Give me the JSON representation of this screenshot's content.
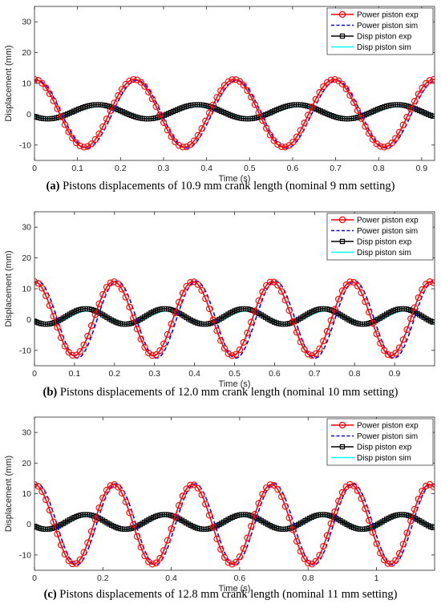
{
  "colors": {
    "power_exp": "#ff0000",
    "power_sim": "#0000ff",
    "disp_exp": "#000000",
    "disp_sim": "#00ffff"
  },
  "chart_data": [
    {
      "type": "line",
      "caption_label": "(a)",
      "caption_text": " Pistons displacements of 10.9 mm crank length (nominal 9 mm setting)",
      "xlabel": "Time (s)",
      "ylabel": "Displacement (mm)",
      "xlim": [
        0,
        0.93
      ],
      "ylim": [
        -15,
        35
      ],
      "xticks": [
        0,
        0.1,
        0.2,
        0.3,
        0.4,
        0.5,
        0.6,
        0.7,
        0.8,
        0.9
      ],
      "xtick_labels": [
        "0",
        "0.1",
        "0.2",
        "0.3",
        "0.4",
        "0.5",
        "0.6",
        "0.7",
        "0.8",
        "0.9"
      ],
      "yticks": [
        -10,
        0,
        10,
        20,
        30
      ],
      "ytick_labels": [
        "-10",
        "0",
        "10",
        "20",
        "30"
      ],
      "legend_position": "top-right",
      "period_s": 0.232,
      "series": [
        {
          "name": "Power piston exp",
          "style": "red-circles",
          "amplitude": 11,
          "phase_s": 0.0,
          "offset": 0.3
        },
        {
          "name": "Power piston sim",
          "style": "blue-dashed",
          "amplitude": 11,
          "phase_s": 0.006,
          "offset": 0
        },
        {
          "name": "Disp piston exp",
          "style": "black-squares",
          "amplitude": 2.3,
          "phase_s": 0.147,
          "offset": 0.8
        },
        {
          "name": "Disp piston sim",
          "style": "cyan-solid",
          "amplitude": 2,
          "phase_s": 0.153,
          "offset": 0.5
        }
      ]
    },
    {
      "type": "line",
      "caption_label": "(b)",
      "caption_text": " Pistons displacements of 12.0 mm crank length (nominal 10 mm setting)",
      "xlabel": "Time (s)",
      "ylabel": "Displacement (mm)",
      "xlim": [
        0,
        1.0
      ],
      "ylim": [
        -15,
        35
      ],
      "xticks": [
        0,
        0.1,
        0.2,
        0.3,
        0.4,
        0.5,
        0.6,
        0.7,
        0.8,
        0.9
      ],
      "xtick_labels": [
        "0",
        "0.1",
        "0.2",
        "0.3",
        "0.4",
        "0.5",
        "0.6",
        "0.7",
        "0.8",
        "0.9"
      ],
      "yticks": [
        -10,
        0,
        10,
        20,
        30
      ],
      "ytick_labels": [
        "-10",
        "0",
        "10",
        "20",
        "30"
      ],
      "legend_position": "top-right",
      "period_s": 0.198,
      "series": [
        {
          "name": "Power piston exp",
          "style": "red-circles",
          "amplitude": 12,
          "phase_s": 0.0,
          "offset": 0.3
        },
        {
          "name": "Power piston sim",
          "style": "blue-dashed",
          "amplitude": 12.5,
          "phase_s": 0.008,
          "offset": 0
        },
        {
          "name": "Disp piston exp",
          "style": "black-squares",
          "amplitude": 2.5,
          "phase_s": 0.128,
          "offset": 1
        },
        {
          "name": "Disp piston sim",
          "style": "cyan-solid",
          "amplitude": 2.2,
          "phase_s": 0.134,
          "offset": 0.6
        }
      ]
    },
    {
      "type": "line",
      "caption_label": "(c)",
      "caption_text": " Pistons displacements of 12.8 mm crank length (nominal 11 mm setting)",
      "xlabel": "Time (s)",
      "ylabel": "Displacement (mm)",
      "xlim": [
        0,
        1.17
      ],
      "ylim": [
        -15,
        35
      ],
      "xticks": [
        0,
        0.2,
        0.4,
        0.6,
        0.8,
        1.0
      ],
      "xtick_labels": [
        "0",
        "0.2",
        "0.4",
        "0.6",
        "0.8",
        "1"
      ],
      "yticks": [
        -10,
        0,
        10,
        20,
        30
      ],
      "ytick_labels": [
        "-10",
        "0",
        "10",
        "20",
        "30"
      ],
      "legend_position": "top-right",
      "period_s": 0.231,
      "series": [
        {
          "name": "Power piston exp",
          "style": "red-circles",
          "amplitude": 13,
          "phase_s": 0.0,
          "offset": 0
        },
        {
          "name": "Power piston sim",
          "style": "blue-dashed",
          "amplitude": 13.2,
          "phase_s": 0.008,
          "offset": 0
        },
        {
          "name": "Disp piston exp",
          "style": "black-squares",
          "amplitude": 2.4,
          "phase_s": 0.15,
          "offset": 0.8
        },
        {
          "name": "Disp piston sim",
          "style": "cyan-solid",
          "amplitude": 2.2,
          "phase_s": 0.156,
          "offset": 0.5
        }
      ]
    }
  ]
}
